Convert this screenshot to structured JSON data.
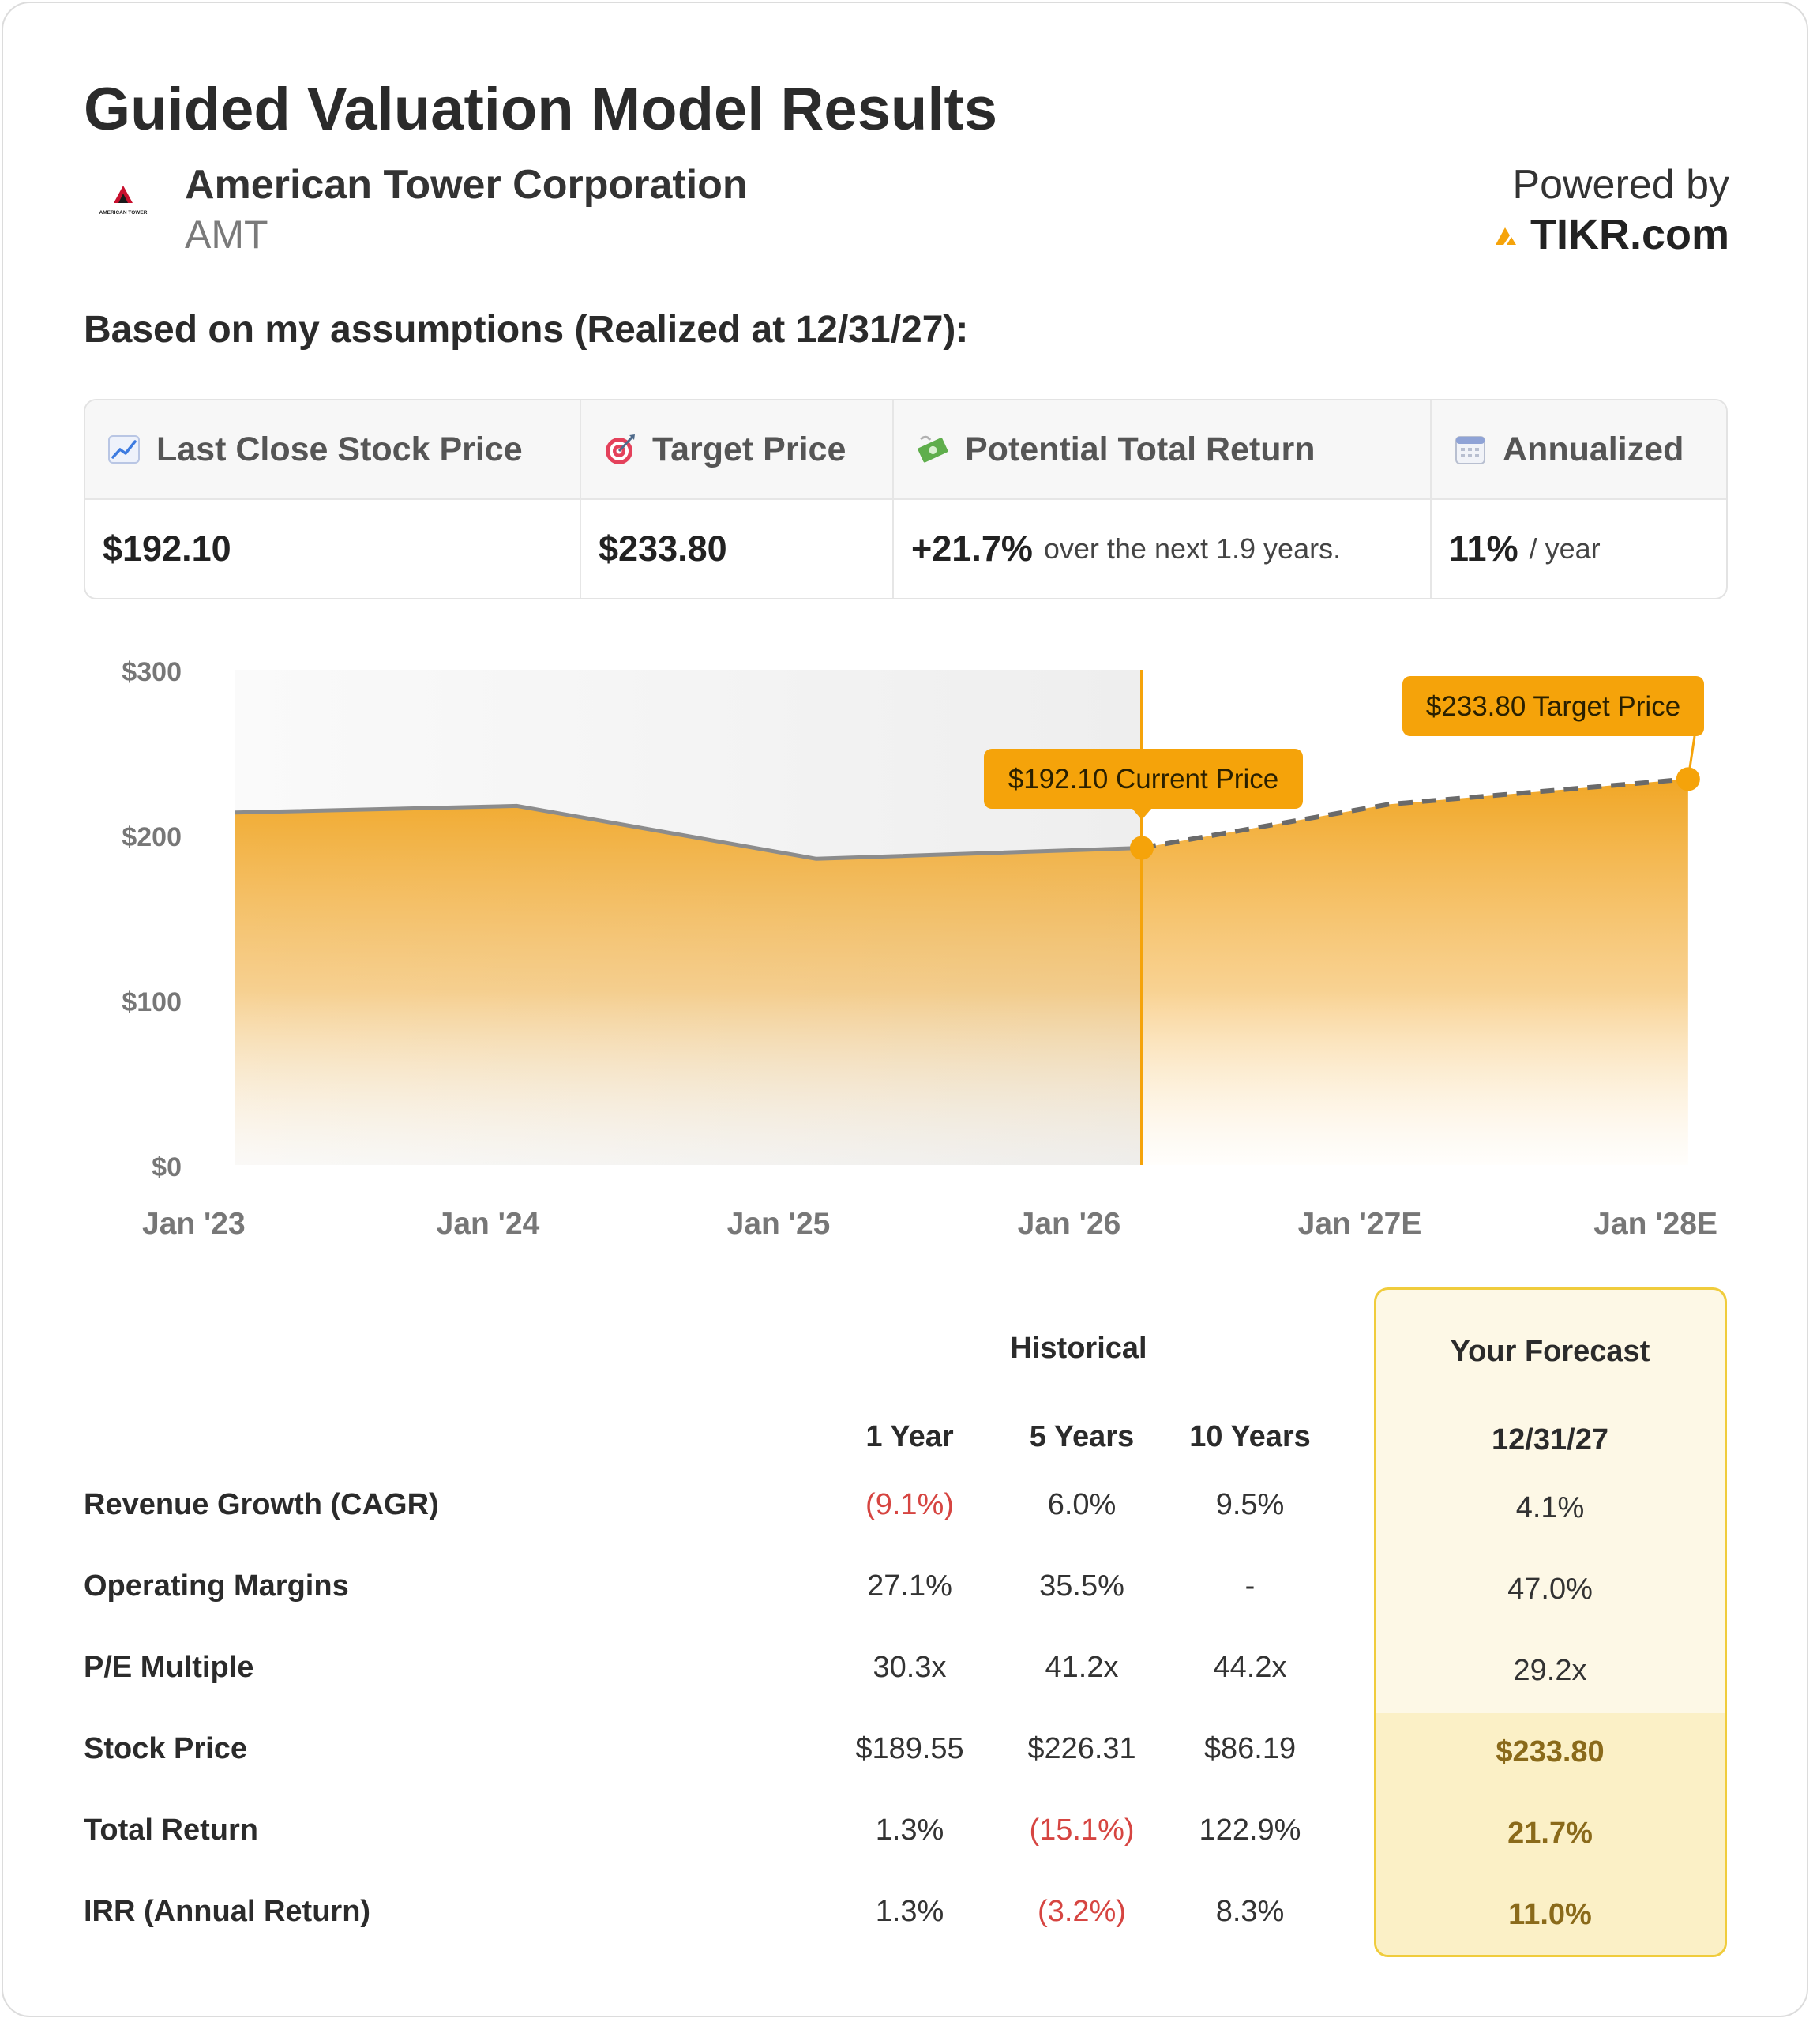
{
  "header": {
    "title": "Guided Valuation Model Results",
    "company_name": "American Tower Corporation",
    "ticker": "AMT",
    "logo_text": "AMERICAN TOWER",
    "powered_label": "Powered by",
    "powered_brand": "TIKR.com",
    "assumptions": "Based on my assumptions (Realized at 12/31/27):"
  },
  "summary": {
    "last_close_label": "Last Close Stock Price",
    "last_close_value": "$192.10",
    "target_label": "Target Price",
    "target_value": "$233.80",
    "return_label": "Potential Total Return",
    "return_value": "+21.7%",
    "return_sub": "over the next 1.9 years.",
    "annualized_label": "Annualized",
    "annualized_value": "11%",
    "annualized_sub": "/ year"
  },
  "colors": {
    "accent": "#f5a30a",
    "fill_top": "#f0a21a",
    "line_hist": "#8c8c8c",
    "negative": "#d64541",
    "forecast_border": "#f0cc3c"
  },
  "chart_data": {
    "type": "area",
    "ylim": [
      0,
      300
    ],
    "yticks": [
      "$0",
      "$100",
      "$200",
      "$300"
    ],
    "ytick_values": [
      0,
      100,
      200,
      300
    ],
    "xticks": [
      "Jan '23",
      "Jan '24",
      "Jan '25",
      "Jan '26",
      "Jan '27E",
      "Jan '28E"
    ],
    "xtick_positions": [
      0,
      1,
      2,
      3,
      4,
      5
    ],
    "historical": [
      {
        "x": 0.13,
        "y": 213.5
      },
      {
        "x": 1.1,
        "y": 217.5
      },
      {
        "x": 2.13,
        "y": 185.5
      },
      {
        "x": 3.25,
        "y": 192.1
      }
    ],
    "forecast": [
      {
        "x": 3.25,
        "y": 192.1
      },
      {
        "x": 4.1,
        "y": 218.5
      },
      {
        "x": 5.13,
        "y": 233.8
      }
    ],
    "current_x": 3.25,
    "current_label": "$192.10 Current Price",
    "target_label": "$233.80 Target Price"
  },
  "metrics": {
    "historical_header": "Historical",
    "forecast_header": "Your Forecast",
    "columns": [
      "1 Year",
      "5 Years",
      "10 Years"
    ],
    "forecast_date": "12/31/27",
    "rows": [
      {
        "label": "Revenue Growth (CAGR)",
        "values": [
          "(9.1%)",
          "6.0%",
          "9.5%"
        ],
        "negative": [
          true,
          false,
          false
        ],
        "forecast": "4.1%"
      },
      {
        "label": "Operating Margins",
        "values": [
          "27.1%",
          "35.5%",
          "-"
        ],
        "negative": [
          false,
          false,
          false
        ],
        "forecast": "47.0%"
      },
      {
        "label": "P/E Multiple",
        "values": [
          "30.3x",
          "41.2x",
          "44.2x"
        ],
        "negative": [
          false,
          false,
          false
        ],
        "forecast": "29.2x"
      },
      {
        "label": "Stock Price",
        "values": [
          "$189.55",
          "$226.31",
          "$86.19"
        ],
        "negative": [
          false,
          false,
          false
        ],
        "forecast": "$233.80"
      },
      {
        "label": "Total Return",
        "values": [
          "1.3%",
          "(15.1%)",
          "122.9%"
        ],
        "negative": [
          false,
          true,
          false
        ],
        "forecast": "21.7%"
      },
      {
        "label": "IRR (Annual Return)",
        "values": [
          "1.3%",
          "(3.2%)",
          "8.3%"
        ],
        "negative": [
          false,
          true,
          false
        ],
        "forecast": "11.0%"
      }
    ]
  }
}
